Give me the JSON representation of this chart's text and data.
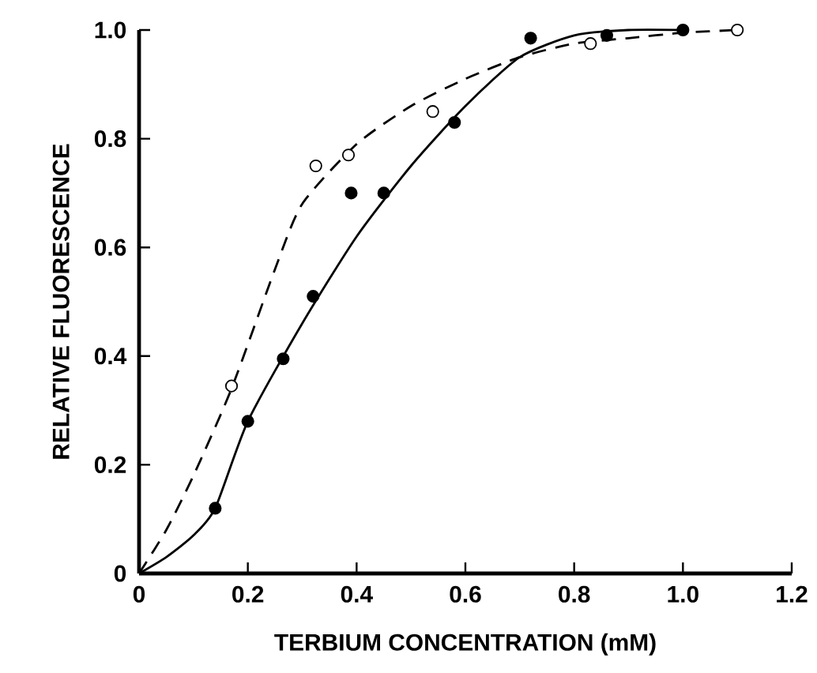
{
  "chart_data": {
    "type": "scatter",
    "xlabel": "TERBIUM CONCENTRATION (mM)",
    "ylabel": "RELATIVE FLUORESCENCE",
    "xlim": [
      0,
      1.2
    ],
    "ylim": [
      0,
      1.0
    ],
    "xticks": [
      0,
      0.2,
      0.4,
      0.6,
      0.8,
      {
        "value": 1.0,
        "label": "1.0"
      },
      1.2
    ],
    "yticks": [
      0,
      0.2,
      0.4,
      0.6,
      0.8,
      {
        "value": 1.0,
        "label": "1.0"
      }
    ],
    "grid": false,
    "marker": "circle",
    "series": [
      {
        "color": "#000000",
        "x": [
          0.14,
          0.2,
          0.265,
          0.32,
          0.39,
          0.45,
          0.58,
          0.72,
          0.86,
          1.0
        ],
        "values": [
          0.12,
          0.28,
          0.395,
          0.51,
          0.7,
          0.7,
          0.83,
          0.985,
          0.99,
          1.0
        ]
      },
      {
        "color": "#ffffff",
        "x": [
          0.17,
          0.325,
          0.385,
          0.54,
          0.83,
          1.1
        ],
        "values": [
          0.345,
          0.75,
          0.77,
          0.85,
          0.975,
          1.0
        ]
      },
      {
        "type": "line",
        "color": "#000000",
        "line_style": "solid",
        "marker": "none",
        "x": [
          0,
          0.05,
          0.1,
          0.14,
          0.2,
          0.3,
          0.4,
          0.5,
          0.6,
          0.7,
          0.8,
          0.9,
          1.0
        ],
        "values": [
          0,
          0.03,
          0.07,
          0.12,
          0.28,
          0.46,
          0.62,
          0.75,
          0.86,
          0.95,
          0.99,
          1.0,
          1.0
        ]
      },
      {
        "type": "line",
        "color": "#000000",
        "line_style": "dashed",
        "marker": "none",
        "x": [
          0,
          0.05,
          0.1,
          0.17,
          0.25,
          0.3,
          0.4,
          0.5,
          0.6,
          0.7,
          0.8,
          0.9,
          1.0,
          1.1
        ],
        "values": [
          0,
          0.08,
          0.18,
          0.34,
          0.56,
          0.68,
          0.79,
          0.86,
          0.91,
          0.95,
          0.975,
          0.985,
          0.995,
          1.0
        ]
      }
    ]
  }
}
